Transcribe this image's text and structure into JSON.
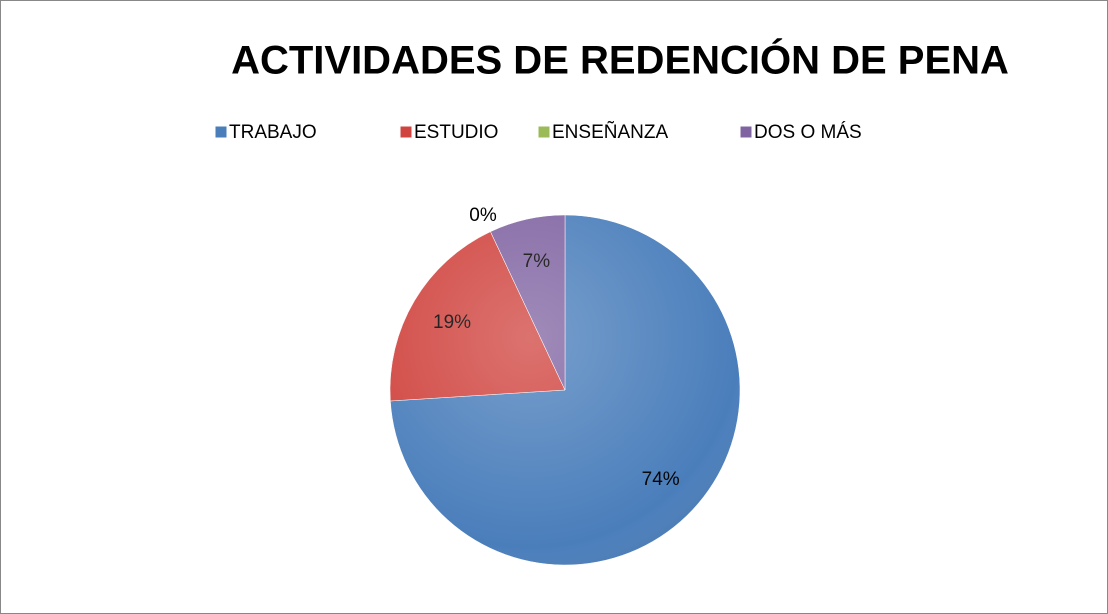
{
  "chart_data": {
    "type": "pie",
    "title": "ACTIVIDADES DE REDENCIÓN DE PENA",
    "categories": [
      "TRABAJO",
      "ESTUDIO",
      "ENSEÑANZA",
      "DOS O MÁS"
    ],
    "values": [
      74,
      19,
      0,
      7
    ],
    "value_labels": [
      "74%",
      "19%",
      "0%",
      "7%"
    ],
    "colors": [
      "#4a7ebb",
      "#d0443f",
      "#9bbb59",
      "#8064a2"
    ],
    "legend": "top"
  }
}
